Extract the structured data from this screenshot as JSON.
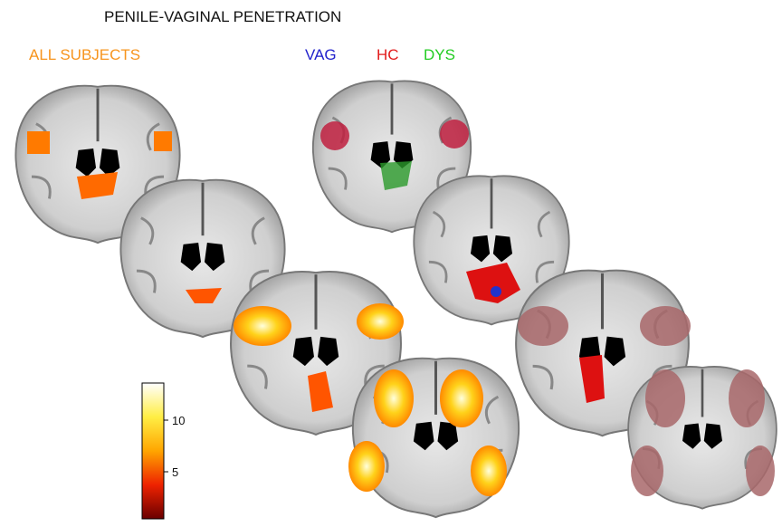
{
  "title": "PENILE-VAGINAL PENETRATION",
  "left_panel": {
    "label": "ALL SUBJECTS"
  },
  "right_panel": {
    "legend": [
      "VAG",
      "HC",
      "DYS"
    ]
  },
  "colorbar": {
    "ticks": [
      "10",
      "5"
    ]
  }
}
